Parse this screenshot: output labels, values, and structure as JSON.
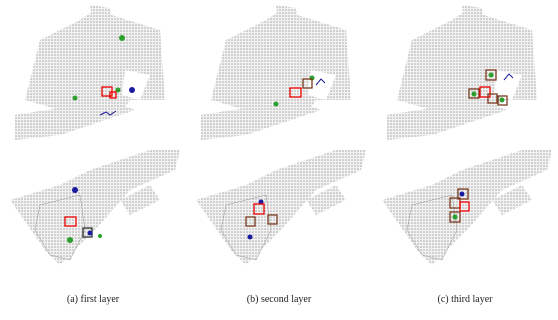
{
  "figure": {
    "captions": [
      "(a) first layer",
      "(b) second layer",
      "(c) third layer"
    ]
  }
}
